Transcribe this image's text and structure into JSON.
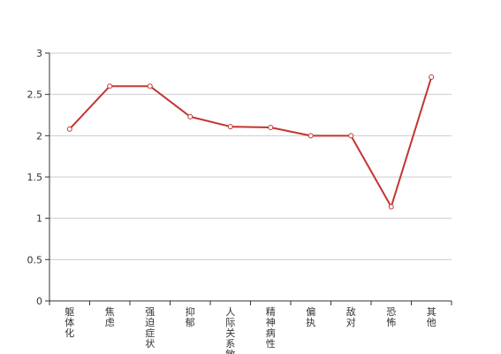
{
  "chart_data": {
    "type": "line",
    "categories": [
      "躯体化",
      "焦虑",
      "强迫症状",
      "抑郁",
      "人际关系敏感",
      "精神病性",
      "偏执",
      "敌对",
      "恐怖",
      "其他"
    ],
    "series": [
      {
        "values": [
          2.08,
          2.6,
          2.6,
          2.23,
          2.11,
          2.1,
          2.0,
          2.0,
          1.14,
          2.71
        ]
      }
    ],
    "ylim": [
      0,
      3
    ],
    "yticks": [
      "0",
      "0.5",
      "1",
      "1.5",
      "2",
      "2.5",
      "3"
    ],
    "grid": true,
    "colors": {
      "line": "#c23531",
      "grid": "#cccccc",
      "axis": "#333333"
    }
  }
}
